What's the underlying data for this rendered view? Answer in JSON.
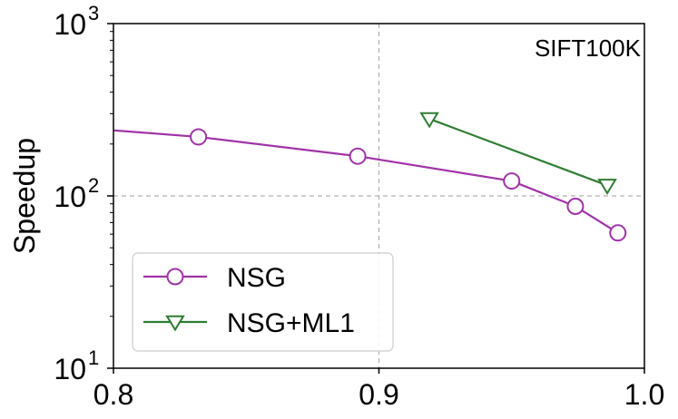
{
  "chart_data": {
    "type": "line",
    "annotation": "SIFT100K",
    "xlabel": "",
    "ylabel": "Speedup",
    "xlim": [
      0.8,
      1.0
    ],
    "ylim": [
      10,
      1000
    ],
    "yscale": "log",
    "x_ticks": [
      "0.8",
      "0.9",
      "1.0"
    ],
    "x_tick_values": [
      0.8,
      0.9,
      1.0
    ],
    "y_ticks": [
      {
        "base": "10",
        "exp": "1",
        "value": 10
      },
      {
        "base": "10",
        "exp": "2",
        "value": 100
      },
      {
        "base": "10",
        "exp": "3",
        "value": 1000
      }
    ],
    "grid": {
      "x": [
        0.9
      ],
      "y": [
        100
      ],
      "style": "dashed"
    },
    "legend_position": "lower-left",
    "series": [
      {
        "name": "NSG",
        "color": "#a033a8",
        "marker": "circle",
        "x": [
          0.8,
          0.832,
          0.892,
          0.95,
          0.974,
          0.99
        ],
        "y": [
          240,
          220,
          170,
          122,
          87,
          61
        ],
        "marked": [
          false,
          true,
          true,
          true,
          true,
          true
        ]
      },
      {
        "name": "NSG+ML1",
        "color": "#2e7d32",
        "marker": "triangle-down",
        "x": [
          0.919,
          0.986
        ],
        "y": [
          280,
          115
        ],
        "marked": [
          true,
          true
        ]
      }
    ]
  }
}
